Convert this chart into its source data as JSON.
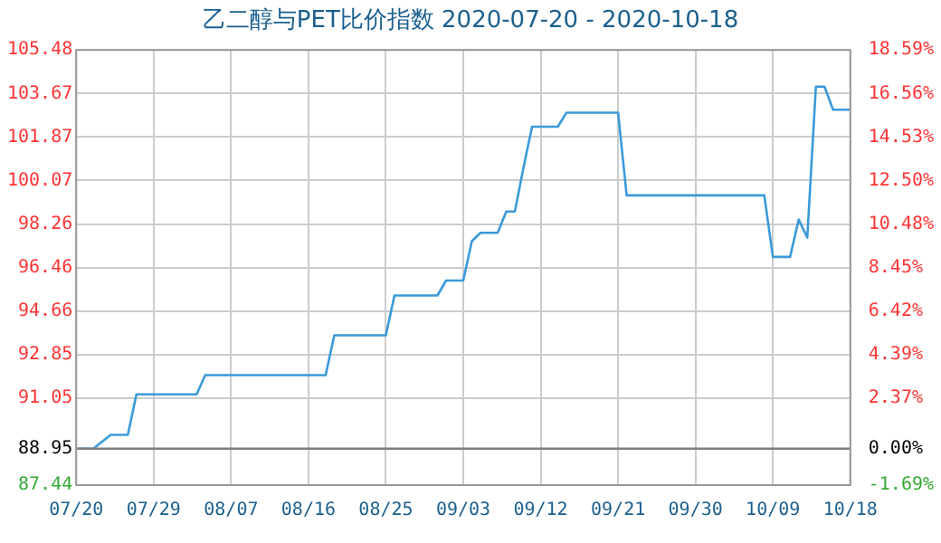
{
  "chart_data": {
    "type": "line",
    "title": "乙二醇与PET比价指数 2020-07-20 - 2020-10-18",
    "x": [
      "2020-07-20",
      "2020-07-22",
      "2020-07-24",
      "2020-07-26",
      "2020-07-27",
      "2020-08-03",
      "2020-08-04",
      "2020-08-18",
      "2020-08-19",
      "2020-08-25",
      "2020-08-26",
      "2020-08-31",
      "2020-09-01",
      "2020-09-03",
      "2020-09-04",
      "2020-09-05",
      "2020-09-07",
      "2020-09-08",
      "2020-09-09",
      "2020-09-10",
      "2020-09-11",
      "2020-09-14",
      "2020-09-15",
      "2020-09-21",
      "2020-09-22",
      "2020-10-08",
      "2020-10-09",
      "2020-10-11",
      "2020-10-12",
      "2020-10-13",
      "2020-10-14",
      "2020-10-15",
      "2020-10-16",
      "2020-10-18"
    ],
    "series": [
      {
        "color": "#3a9ad9",
        "values": [
          88.95,
          88.95,
          89.52,
          89.52,
          91.2,
          91.2,
          92.0,
          92.0,
          93.65,
          93.65,
          95.3,
          95.3,
          95.92,
          95.92,
          97.55,
          97.9,
          97.9,
          98.78,
          98.78,
          100.6,
          102.3,
          102.3,
          102.88,
          102.88,
          99.45,
          99.45,
          96.9,
          96.9,
          98.45,
          97.7,
          103.96,
          103.96,
          103.0,
          103.0
        ]
      }
    ],
    "xlim": [
      "2020-07-20",
      "2020-10-18"
    ],
    "xticks": [
      {
        "value": "2020-07-20",
        "label": "07/20"
      },
      {
        "value": "2020-07-29",
        "label": "07/29"
      },
      {
        "value": "2020-08-07",
        "label": "08/07"
      },
      {
        "value": "2020-08-16",
        "label": "08/16"
      },
      {
        "value": "2020-08-25",
        "label": "08/25"
      },
      {
        "value": "2020-09-03",
        "label": "09/03"
      },
      {
        "value": "2020-09-12",
        "label": "09/12"
      },
      {
        "value": "2020-09-21",
        "label": "09/21"
      },
      {
        "value": "2020-09-30",
        "label": "09/30"
      },
      {
        "value": "2020-10-09",
        "label": "10/09"
      },
      {
        "value": "2020-10-18",
        "label": "10/18"
      }
    ],
    "ylim": [
      87.44,
      105.48
    ],
    "yticks": [
      87.44,
      88.95,
      91.05,
      92.85,
      94.66,
      96.46,
      98.26,
      100.07,
      101.87,
      103.67,
      105.48
    ],
    "y2lim": [
      -1.69,
      18.59
    ],
    "y2ticks": [
      {
        "value": -1.69,
        "label": "-1.69%"
      },
      {
        "value": 0,
        "label": "0.00%"
      },
      {
        "value": 2.37,
        "label": "2.37%"
      },
      {
        "value": 4.39,
        "label": "4.39%"
      },
      {
        "value": 6.42,
        "label": "6.42%"
      },
      {
        "value": 8.45,
        "label": "8.45%"
      },
      {
        "value": 10.48,
        "label": "10.48%"
      },
      {
        "value": 12.5,
        "label": "12.50%"
      },
      {
        "value": 14.53,
        "label": "14.53%"
      },
      {
        "value": 16.56,
        "label": "16.56%"
      },
      {
        "value": 18.59,
        "label": "18.59%"
      }
    ],
    "ref_lines": [
      {
        "axis": "y",
        "value": 88.95,
        "color": "#808080"
      }
    ],
    "grid": true,
    "line_style": "solid",
    "marker": "none",
    "legend": false
  }
}
